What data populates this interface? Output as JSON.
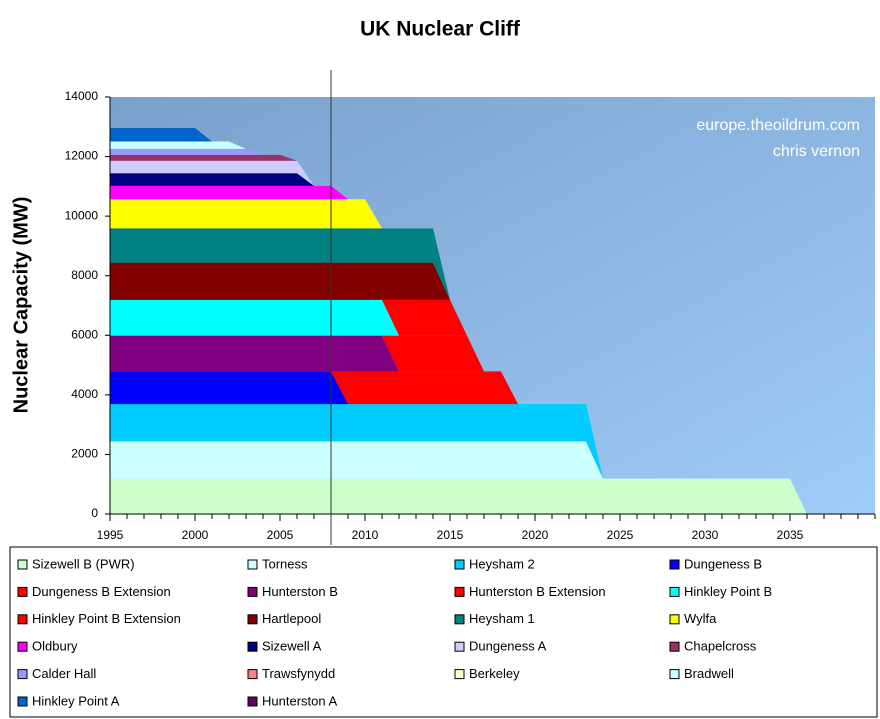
{
  "chart_data": {
    "type": "stacked_area",
    "title": "UK Nuclear Cliff",
    "y_label": "Nuclear Capacity (MW)",
    "annotations": [
      "europe.theoildrum.com",
      "chris vernon"
    ],
    "xlim": [
      1995,
      2040
    ],
    "xticks": [
      1995,
      2000,
      2005,
      2010,
      2015,
      2020,
      2025,
      2030,
      2035
    ],
    "ylim": [
      0,
      14000
    ],
    "yticks": [
      0,
      2000,
      4000,
      6000,
      8000,
      10000,
      12000,
      14000
    ],
    "vline_x": 2008,
    "x": [
      1995,
      1996,
      1997,
      1998,
      1999,
      2000,
      2001,
      2002,
      2003,
      2004,
      2005,
      2006,
      2007,
      2008,
      2009,
      2010,
      2011,
      2012,
      2013,
      2014,
      2015,
      2016,
      2017,
      2018,
      2019,
      2020,
      2021,
      2022,
      2023,
      2024,
      2025,
      2026,
      2027,
      2028,
      2029,
      2030,
      2031,
      2032,
      2033,
      2034,
      2035,
      2036
    ],
    "series": [
      {
        "name": "Sizewell B (PWR)",
        "color": "#ccffcc",
        "values": [
          1188,
          1188,
          1188,
          1188,
          1188,
          1188,
          1188,
          1188,
          1188,
          1188,
          1188,
          1188,
          1188,
          1188,
          1188,
          1188,
          1188,
          1188,
          1188,
          1188,
          1188,
          1188,
          1188,
          1188,
          1188,
          1188,
          1188,
          1188,
          1188,
          1188,
          1188,
          1188,
          1188,
          1188,
          1188,
          1188,
          1188,
          1188,
          1188,
          1188,
          1188,
          0
        ]
      },
      {
        "name": "Torness",
        "color": "#ccffff",
        "values": [
          1250,
          1250,
          1250,
          1250,
          1250,
          1250,
          1250,
          1250,
          1250,
          1250,
          1250,
          1250,
          1250,
          1250,
          1250,
          1250,
          1250,
          1250,
          1250,
          1250,
          1250,
          1250,
          1250,
          1250,
          1250,
          1250,
          1250,
          1250,
          1250,
          0,
          0,
          0,
          0,
          0,
          0,
          0,
          0,
          0,
          0,
          0,
          0,
          0
        ]
      },
      {
        "name": "Heysham 2",
        "color": "#00ccff",
        "values": [
          1250,
          1250,
          1250,
          1250,
          1250,
          1250,
          1250,
          1250,
          1250,
          1250,
          1250,
          1250,
          1250,
          1250,
          1250,
          1250,
          1250,
          1250,
          1250,
          1250,
          1250,
          1250,
          1250,
          1250,
          1250,
          1250,
          1250,
          1250,
          1250,
          0,
          0,
          0,
          0,
          0,
          0,
          0,
          0,
          0,
          0,
          0,
          0,
          0
        ]
      },
      {
        "name": "Dungeness B",
        "color": "#0000ff",
        "values": [
          1100,
          1100,
          1100,
          1100,
          1100,
          1100,
          1100,
          1100,
          1100,
          1100,
          1100,
          1100,
          1100,
          1100,
          0,
          0,
          0,
          0,
          0,
          0,
          0,
          0,
          0,
          0,
          0,
          0,
          0,
          0,
          0,
          0,
          0,
          0,
          0,
          0,
          0,
          0,
          0,
          0,
          0,
          0,
          0,
          0
        ]
      },
      {
        "name": "Dungeness B Extension",
        "color": "#ff0000",
        "values": [
          0,
          0,
          0,
          0,
          0,
          0,
          0,
          0,
          0,
          0,
          0,
          0,
          0,
          0,
          1100,
          1100,
          1100,
          1100,
          1100,
          1100,
          1100,
          1100,
          1100,
          1100,
          0,
          0,
          0,
          0,
          0,
          0,
          0,
          0,
          0,
          0,
          0,
          0,
          0,
          0,
          0,
          0,
          0,
          0
        ]
      },
      {
        "name": "Hunterston B",
        "color": "#800080",
        "values": [
          1200,
          1200,
          1200,
          1200,
          1200,
          1200,
          1200,
          1200,
          1200,
          1200,
          1200,
          1200,
          1200,
          1200,
          1200,
          1200,
          1200,
          0,
          0,
          0,
          0,
          0,
          0,
          0,
          0,
          0,
          0,
          0,
          0,
          0,
          0,
          0,
          0,
          0,
          0,
          0,
          0,
          0,
          0,
          0,
          0,
          0
        ]
      },
      {
        "name": "Hunterston B Extension",
        "color": "#ff0000",
        "values": [
          0,
          0,
          0,
          0,
          0,
          0,
          0,
          0,
          0,
          0,
          0,
          0,
          0,
          0,
          0,
          0,
          0,
          1200,
          1200,
          1200,
          1200,
          1200,
          0,
          0,
          0,
          0,
          0,
          0,
          0,
          0,
          0,
          0,
          0,
          0,
          0,
          0,
          0,
          0,
          0,
          0,
          0,
          0
        ]
      },
      {
        "name": "Hinkley Point B",
        "color": "#00ffff",
        "values": [
          1200,
          1200,
          1200,
          1200,
          1200,
          1200,
          1200,
          1200,
          1200,
          1200,
          1200,
          1200,
          1200,
          1200,
          1200,
          1200,
          1200,
          0,
          0,
          0,
          0,
          0,
          0,
          0,
          0,
          0,
          0,
          0,
          0,
          0,
          0,
          0,
          0,
          0,
          0,
          0,
          0,
          0,
          0,
          0,
          0,
          0
        ]
      },
      {
        "name": "Hinkley Point B Extension",
        "color": "#ff0000",
        "values": [
          0,
          0,
          0,
          0,
          0,
          0,
          0,
          0,
          0,
          0,
          0,
          0,
          0,
          0,
          0,
          0,
          0,
          1200,
          1200,
          1200,
          1200,
          0,
          0,
          0,
          0,
          0,
          0,
          0,
          0,
          0,
          0,
          0,
          0,
          0,
          0,
          0,
          0,
          0,
          0,
          0,
          0,
          0
        ]
      },
      {
        "name": "Hartlepool",
        "color": "#800000",
        "values": [
          1250,
          1250,
          1250,
          1250,
          1250,
          1250,
          1250,
          1250,
          1250,
          1250,
          1250,
          1250,
          1250,
          1250,
          1250,
          1250,
          1250,
          1250,
          1250,
          1250,
          0,
          0,
          0,
          0,
          0,
          0,
          0,
          0,
          0,
          0,
          0,
          0,
          0,
          0,
          0,
          0,
          0,
          0,
          0,
          0,
          0,
          0
        ]
      },
      {
        "name": "Heysham 1",
        "color": "#008080",
        "values": [
          1150,
          1150,
          1150,
          1150,
          1150,
          1150,
          1150,
          1150,
          1150,
          1150,
          1150,
          1150,
          1150,
          1150,
          1150,
          1150,
          1150,
          1150,
          1150,
          1150,
          0,
          0,
          0,
          0,
          0,
          0,
          0,
          0,
          0,
          0,
          0,
          0,
          0,
          0,
          0,
          0,
          0,
          0,
          0,
          0,
          0,
          0
        ]
      },
      {
        "name": "Wylfa",
        "color": "#ffff00",
        "values": [
          980,
          980,
          980,
          980,
          980,
          980,
          980,
          980,
          980,
          980,
          980,
          980,
          980,
          980,
          980,
          980,
          0,
          0,
          0,
          0,
          0,
          0,
          0,
          0,
          0,
          0,
          0,
          0,
          0,
          0,
          0,
          0,
          0,
          0,
          0,
          0,
          0,
          0,
          0,
          0,
          0,
          0
        ]
      },
      {
        "name": "Oldbury",
        "color": "#ff00ff",
        "values": [
          450,
          450,
          450,
          450,
          450,
          450,
          450,
          450,
          450,
          450,
          450,
          450,
          450,
          450,
          0,
          0,
          0,
          0,
          0,
          0,
          0,
          0,
          0,
          0,
          0,
          0,
          0,
          0,
          0,
          0,
          0,
          0,
          0,
          0,
          0,
          0,
          0,
          0,
          0,
          0,
          0,
          0
        ]
      },
      {
        "name": "Sizewell A",
        "color": "#000080",
        "values": [
          420,
          420,
          420,
          420,
          420,
          420,
          420,
          420,
          420,
          420,
          420,
          420,
          0,
          0,
          0,
          0,
          0,
          0,
          0,
          0,
          0,
          0,
          0,
          0,
          0,
          0,
          0,
          0,
          0,
          0,
          0,
          0,
          0,
          0,
          0,
          0,
          0,
          0,
          0,
          0,
          0,
          0
        ]
      },
      {
        "name": "Dungeness A",
        "color": "#ccccff",
        "values": [
          420,
          420,
          420,
          420,
          420,
          420,
          420,
          420,
          420,
          420,
          420,
          420,
          0,
          0,
          0,
          0,
          0,
          0,
          0,
          0,
          0,
          0,
          0,
          0,
          0,
          0,
          0,
          0,
          0,
          0,
          0,
          0,
          0,
          0,
          0,
          0,
          0,
          0,
          0,
          0,
          0,
          0
        ]
      },
      {
        "name": "Chapelcross",
        "color": "#993366",
        "values": [
          200,
          200,
          200,
          200,
          200,
          200,
          200,
          200,
          200,
          200,
          200,
          0,
          0,
          0,
          0,
          0,
          0,
          0,
          0,
          0,
          0,
          0,
          0,
          0,
          0,
          0,
          0,
          0,
          0,
          0,
          0,
          0,
          0,
          0,
          0,
          0,
          0,
          0,
          0,
          0,
          0,
          0
        ]
      },
      {
        "name": "Calder Hall",
        "color": "#9999ff",
        "values": [
          200,
          200,
          200,
          200,
          200,
          200,
          200,
          200,
          200,
          0,
          0,
          0,
          0,
          0,
          0,
          0,
          0,
          0,
          0,
          0,
          0,
          0,
          0,
          0,
          0,
          0,
          0,
          0,
          0,
          0,
          0,
          0,
          0,
          0,
          0,
          0,
          0,
          0,
          0,
          0,
          0,
          0
        ]
      },
      {
        "name": "Trawsfynydd",
        "color": "#ff8080",
        "values": [
          0,
          0,
          0,
          0,
          0,
          0,
          0,
          0,
          0,
          0,
          0,
          0,
          0,
          0,
          0,
          0,
          0,
          0,
          0,
          0,
          0,
          0,
          0,
          0,
          0,
          0,
          0,
          0,
          0,
          0,
          0,
          0,
          0,
          0,
          0,
          0,
          0,
          0,
          0,
          0,
          0,
          0
        ]
      },
      {
        "name": "Berkeley",
        "color": "#ffffcc",
        "values": [
          0,
          0,
          0,
          0,
          0,
          0,
          0,
          0,
          0,
          0,
          0,
          0,
          0,
          0,
          0,
          0,
          0,
          0,
          0,
          0,
          0,
          0,
          0,
          0,
          0,
          0,
          0,
          0,
          0,
          0,
          0,
          0,
          0,
          0,
          0,
          0,
          0,
          0,
          0,
          0,
          0,
          0
        ]
      },
      {
        "name": "Bradwell",
        "color": "#ccffff",
        "values": [
          250,
          250,
          250,
          250,
          250,
          250,
          250,
          250,
          0,
          0,
          0,
          0,
          0,
          0,
          0,
          0,
          0,
          0,
          0,
          0,
          0,
          0,
          0,
          0,
          0,
          0,
          0,
          0,
          0,
          0,
          0,
          0,
          0,
          0,
          0,
          0,
          0,
          0,
          0,
          0,
          0,
          0
        ]
      },
      {
        "name": "Hinkley Point A",
        "color": "#0066cc",
        "values": [
          450,
          450,
          450,
          450,
          450,
          450,
          0,
          0,
          0,
          0,
          0,
          0,
          0,
          0,
          0,
          0,
          0,
          0,
          0,
          0,
          0,
          0,
          0,
          0,
          0,
          0,
          0,
          0,
          0,
          0,
          0,
          0,
          0,
          0,
          0,
          0,
          0,
          0,
          0,
          0,
          0,
          0
        ]
      },
      {
        "name": "Hunterston A",
        "color": "#660066",
        "values": [
          0,
          0,
          0,
          0,
          0,
          0,
          0,
          0,
          0,
          0,
          0,
          0,
          0,
          0,
          0,
          0,
          0,
          0,
          0,
          0,
          0,
          0,
          0,
          0,
          0,
          0,
          0,
          0,
          0,
          0,
          0,
          0,
          0,
          0,
          0,
          0,
          0,
          0,
          0,
          0,
          0,
          0
        ]
      }
    ]
  }
}
